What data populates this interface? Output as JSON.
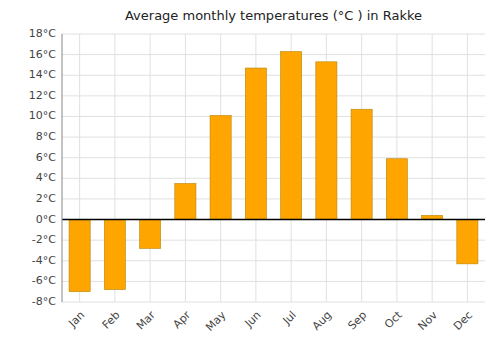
{
  "chart_data": {
    "type": "bar",
    "title": "Average monthly temperatures (°C ) in Rakke",
    "categories": [
      "Jan",
      "Feb",
      "Mar",
      "Apr",
      "May",
      "Jun",
      "Jul",
      "Aug",
      "Sep",
      "Oct",
      "Nov",
      "Dec"
    ],
    "values": [
      -7.0,
      -6.8,
      -2.8,
      3.5,
      10.1,
      14.7,
      16.3,
      15.3,
      10.7,
      5.9,
      0.4,
      -4.3
    ],
    "color": "#FFA500",
    "ylim": [
      -8,
      18
    ],
    "yticks": [
      {
        "value": -8,
        "label": "-8°C"
      },
      {
        "value": -6,
        "label": "-6°C"
      },
      {
        "value": -4,
        "label": "-4°C"
      },
      {
        "value": -2,
        "label": "-2°C"
      },
      {
        "value": 0,
        "label": "0°C"
      },
      {
        "value": 2,
        "label": "2°C"
      },
      {
        "value": 4,
        "label": "4°C"
      },
      {
        "value": 6,
        "label": "6°C"
      },
      {
        "value": 8,
        "label": "8°C"
      },
      {
        "value": 10,
        "label": "10°C"
      },
      {
        "value": 12,
        "label": "12°C"
      },
      {
        "value": 14,
        "label": "14°C"
      },
      {
        "value": 16,
        "label": "16°C"
      },
      {
        "value": 18,
        "label": "18°C"
      }
    ],
    "grid": true
  }
}
